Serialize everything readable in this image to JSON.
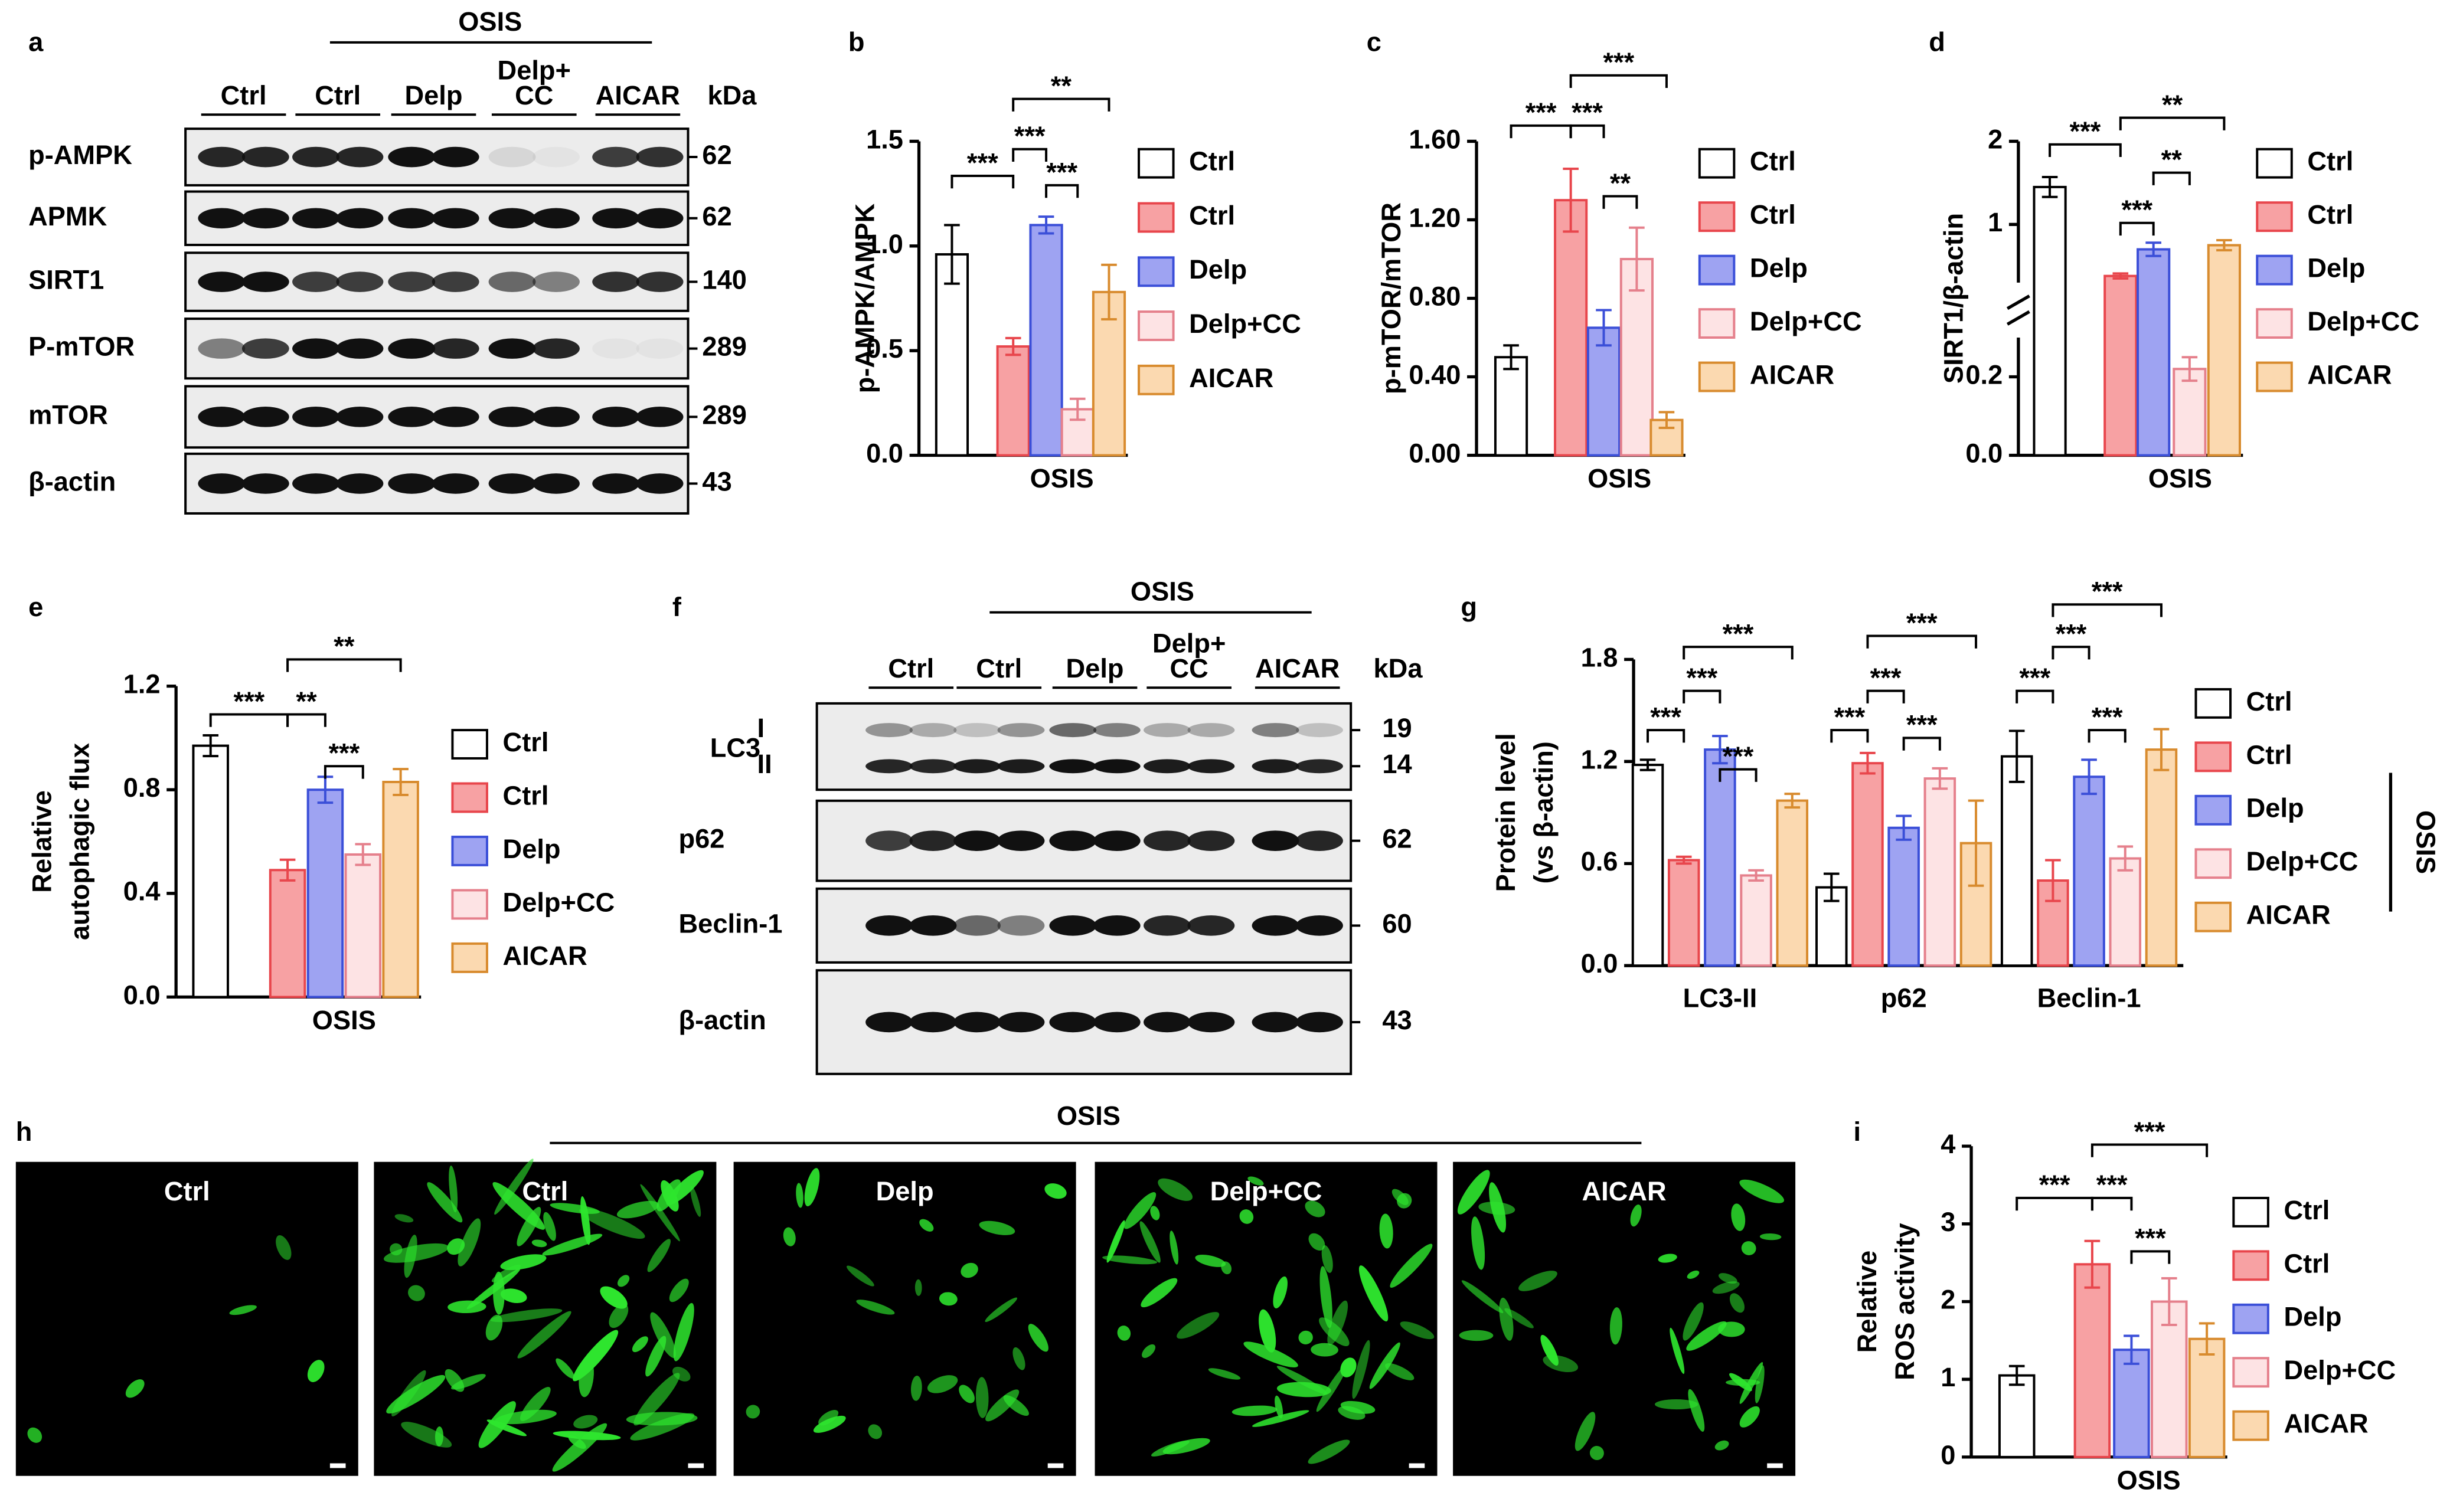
{
  "chart_data": [
    {
      "type": "bar",
      "label": "b",
      "ylabel": [
        "p-AMPK/AMPK"
      ],
      "xlabel": "OSIS",
      "ylim": [
        0,
        1.5
      ],
      "yticks": [
        {
          "value": 0,
          "label": "0.0"
        },
        0.5,
        {
          "value": 1,
          "label": "1.0"
        },
        1.5
      ],
      "series": [
        {
          "name": "Ctrl",
          "color": "#ffffff",
          "edge": "#000000",
          "values": [
            0.96
          ],
          "errors": [
            0.14
          ]
        },
        {
          "name": "Ctrl",
          "color": "#f7a1a3",
          "edge": "#e8464c",
          "values": [
            0.52
          ],
          "errors": [
            0.04
          ]
        },
        {
          "name": "Delp",
          "color": "#9ea3f2",
          "edge": "#3b4fd8",
          "values": [
            1.1
          ],
          "errors": [
            0.04
          ]
        },
        {
          "name": "Delp+CC",
          "color": "#fde3e4",
          "edge": "#e5808c",
          "values": [
            0.22
          ],
          "errors": [
            0.05
          ]
        },
        {
          "name": "AICAR",
          "color": "#fbd9b0",
          "edge": "#d88b2e",
          "values": [
            0.78
          ],
          "errors": [
            0.13
          ]
        }
      ],
      "annotations": [
        "***",
        "***",
        "***",
        "**"
      ]
    },
    {
      "type": "bar",
      "label": "c",
      "ylabel": [
        "p-mTOR/mTOR"
      ],
      "xlabel": "OSIS",
      "ylim": [
        0,
        1.6
      ],
      "yticks": [
        {
          "value": 0,
          "label": "0.00"
        },
        {
          "value": 0.4,
          "label": "0.40"
        },
        {
          "value": 0.8,
          "label": "0.80"
        },
        {
          "value": 1.2,
          "label": "1.20"
        },
        {
          "value": 1.6,
          "label": "1.60"
        }
      ],
      "series": [
        {
          "name": "Ctrl",
          "color": "#ffffff",
          "edge": "#000000",
          "values": [
            0.5
          ],
          "errors": [
            0.06
          ]
        },
        {
          "name": "Ctrl",
          "color": "#f7a1a3",
          "edge": "#e8464c",
          "values": [
            1.3
          ],
          "errors": [
            0.16
          ]
        },
        {
          "name": "Delp",
          "color": "#9ea3f2",
          "edge": "#3b4fd8",
          "values": [
            0.65
          ],
          "errors": [
            0.09
          ]
        },
        {
          "name": "Delp+CC",
          "color": "#fde3e4",
          "edge": "#e5808c",
          "values": [
            1.0
          ],
          "errors": [
            0.16
          ]
        },
        {
          "name": "AICAR",
          "color": "#fbd9b0",
          "edge": "#d88b2e",
          "values": [
            0.18
          ],
          "errors": [
            0.04
          ]
        }
      ],
      "annotations": [
        "***",
        "***",
        "**",
        "***"
      ]
    },
    {
      "type": "bar",
      "label": "d",
      "ylabel": [
        "SIRT1/β-actin"
      ],
      "xlabel": "OSIS",
      "ylim": [
        0,
        2
      ],
      "ysegments": [
        [
          0,
          0.3
        ],
        [
          0.3,
          2
        ]
      ],
      "yticks": [
        {
          "value": 0,
          "label": "0.0"
        },
        0.2,
        1,
        2
      ],
      "series": [
        {
          "name": "Ctrl",
          "color": "#ffffff",
          "edge": "#000000",
          "values": [
            1.45
          ],
          "errors": [
            0.12
          ]
        },
        {
          "name": "Ctrl",
          "color": "#f7a1a3",
          "edge": "#e8464c",
          "values": [
            0.38
          ],
          "errors": [
            0.03
          ]
        },
        {
          "name": "Delp",
          "color": "#9ea3f2",
          "edge": "#3b4fd8",
          "values": [
            0.7
          ],
          "errors": [
            0.08
          ]
        },
        {
          "name": "Delp+CC",
          "color": "#fde3e4",
          "edge": "#e5808c",
          "values": [
            0.22
          ],
          "errors": [
            0.03
          ]
        },
        {
          "name": "AICAR",
          "color": "#fbd9b0",
          "edge": "#d88b2e",
          "values": [
            0.75
          ],
          "errors": [
            0.06
          ]
        }
      ],
      "annotations": [
        "***",
        "***",
        "**",
        "**"
      ]
    },
    {
      "type": "bar",
      "label": "e",
      "ylabel": [
        "Relative",
        "autophagic flux"
      ],
      "xlabel": "OSIS",
      "ylim": [
        0,
        1.2
      ],
      "yticks": [
        {
          "value": 0,
          "label": "0.0"
        },
        0.4,
        0.8,
        1.2
      ],
      "series": [
        {
          "name": "Ctrl",
          "color": "#ffffff",
          "edge": "#000000",
          "values": [
            0.97
          ],
          "errors": [
            0.04
          ]
        },
        {
          "name": "Ctrl",
          "color": "#f7a1a3",
          "edge": "#e8464c",
          "values": [
            0.49
          ],
          "errors": [
            0.04
          ]
        },
        {
          "name": "Delp",
          "color": "#9ea3f2",
          "edge": "#3b4fd8",
          "values": [
            0.8
          ],
          "errors": [
            0.05
          ]
        },
        {
          "name": "Delp+CC",
          "color": "#fde3e4",
          "edge": "#e5808c",
          "values": [
            0.55
          ],
          "errors": [
            0.04
          ]
        },
        {
          "name": "AICAR",
          "color": "#fbd9b0",
          "edge": "#d88b2e",
          "values": [
            0.83
          ],
          "errors": [
            0.05
          ]
        }
      ],
      "annotations": [
        "***",
        "**",
        "***",
        "**"
      ]
    },
    {
      "type": "groupbar",
      "label": "g",
      "ylabel": [
        "Protein level",
        "(vs β-actin)"
      ],
      "legend_group": "OSIS",
      "categories": [
        "LC3-II",
        "p62",
        "Beclin-1"
      ],
      "ylim": [
        0,
        1.8
      ],
      "yticks": [
        {
          "value": 0,
          "label": "0.0"
        },
        0.6,
        1.2,
        1.8
      ],
      "series": [
        {
          "name": "Ctrl",
          "color": "#ffffff",
          "edge": "#000000",
          "values": [
            1.18,
            0.46,
            1.23
          ],
          "errors": [
            0.03,
            0.08,
            0.15
          ]
        },
        {
          "name": "Ctrl",
          "color": "#f7a1a3",
          "edge": "#e8464c",
          "values": [
            0.62,
            1.19,
            0.5
          ],
          "errors": [
            0.02,
            0.06,
            0.12
          ]
        },
        {
          "name": "Delp",
          "color": "#9ea3f2",
          "edge": "#3b4fd8",
          "values": [
            1.27,
            0.81,
            1.11
          ],
          "errors": [
            0.08,
            0.07,
            0.1
          ]
        },
        {
          "name": "Delp+CC",
          "color": "#fde3e4",
          "edge": "#e5808c",
          "values": [
            0.53,
            1.1,
            0.63
          ],
          "errors": [
            0.03,
            0.06,
            0.07
          ]
        },
        {
          "name": "AICAR",
          "color": "#fbd9b0",
          "edge": "#d88b2e",
          "values": [
            0.97,
            0.72,
            1.27
          ],
          "errors": [
            0.04,
            0.25,
            0.12
          ]
        }
      ],
      "annotations": [
        "***",
        "***",
        "***",
        "***",
        "***",
        "***",
        "***",
        "***",
        "***",
        "***",
        "***",
        "***"
      ]
    },
    {
      "type": "bar",
      "label": "i",
      "ylabel": [
        "Relative",
        "ROS activity"
      ],
      "xlabel": "OSIS",
      "ylim": [
        0,
        4
      ],
      "yticks": [
        0,
        1,
        2,
        3,
        4
      ],
      "series": [
        {
          "name": "Ctrl",
          "color": "#ffffff",
          "edge": "#000000",
          "values": [
            1.05
          ],
          "errors": [
            0.12
          ]
        },
        {
          "name": "Ctrl",
          "color": "#f7a1a3",
          "edge": "#e8464c",
          "values": [
            2.48
          ],
          "errors": [
            0.3
          ]
        },
        {
          "name": "Delp",
          "color": "#9ea3f2",
          "edge": "#3b4fd8",
          "values": [
            1.38
          ],
          "errors": [
            0.18
          ]
        },
        {
          "name": "Delp+CC",
          "color": "#fde3e4",
          "edge": "#e5808c",
          "values": [
            2.0
          ],
          "errors": [
            0.3
          ]
        },
        {
          "name": "AICAR",
          "color": "#fbd9b0",
          "edge": "#d88b2e",
          "values": [
            1.52
          ],
          "errors": [
            0.2
          ]
        }
      ],
      "annotations": [
        "***",
        "***",
        "***",
        "***"
      ]
    }
  ],
  "blots": [
    {
      "label": "a",
      "header": "OSIS",
      "lanes": [
        "Ctrl",
        "Ctrl",
        "Delp",
        [
          "Delp+",
          "CC"
        ],
        "AICAR"
      ],
      "unit": "kDa",
      "rows": [
        {
          "name": "p-AMPK",
          "kda": [
            62
          ]
        },
        {
          "name": "APMK",
          "kda": [
            62
          ]
        },
        {
          "name": "SIRT1",
          "kda": [
            140
          ]
        },
        {
          "name": "P-mTOR",
          "kda": [
            289
          ]
        },
        {
          "name": "mTOR",
          "kda": [
            289
          ]
        },
        {
          "name": "β-actin",
          "kda": [
            43
          ]
        }
      ]
    },
    {
      "label": "f",
      "header": "OSIS",
      "lanes": [
        "Ctrl",
        "Ctrl",
        "Delp",
        [
          "Delp+",
          "CC"
        ],
        "AICAR"
      ],
      "unit": "kDa",
      "rows": [
        {
          "name": "LC3",
          "bands": [
            "I",
            "II"
          ],
          "kda": [
            19,
            14
          ]
        },
        {
          "name": "p62",
          "kda": [
            62
          ]
        },
        {
          "name": "Beclin-1",
          "kda": [
            60
          ]
        },
        {
          "name": "β-actin",
          "kda": [
            43
          ]
        }
      ]
    }
  ],
  "images": {
    "label": "h",
    "header": "OSIS",
    "panels": [
      "Ctrl",
      "Ctrl",
      "Delp",
      "Delp+CC",
      "AICAR"
    ]
  }
}
